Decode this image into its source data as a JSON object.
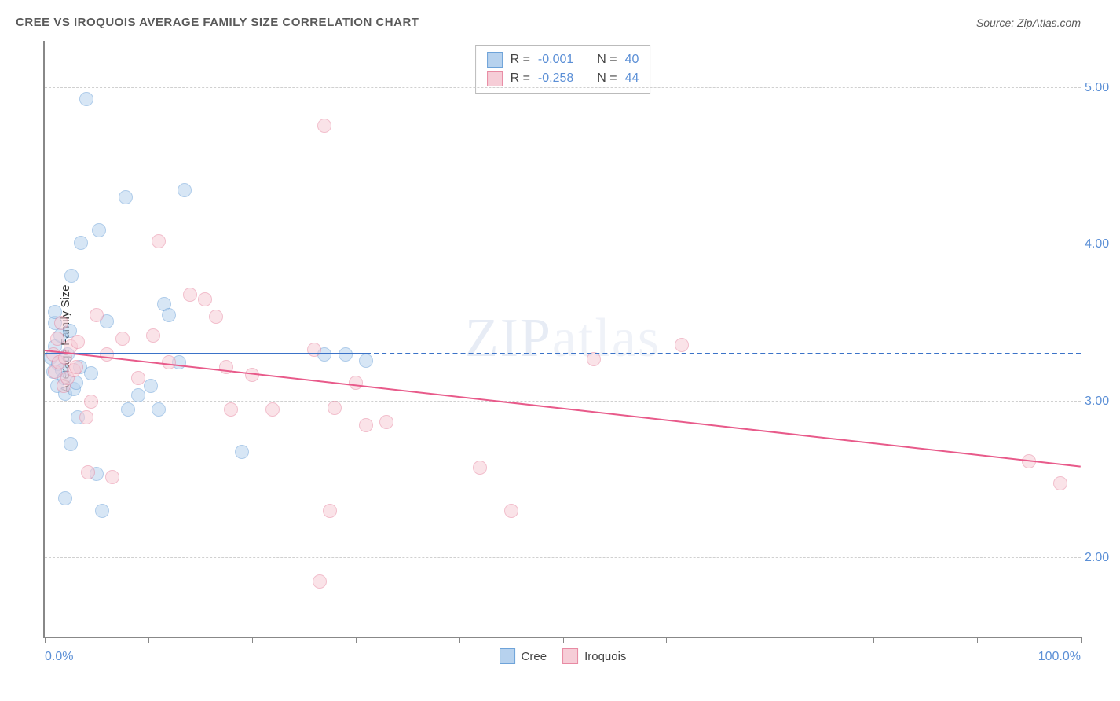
{
  "header": {
    "title": "CREE VS IROQUOIS AVERAGE FAMILY SIZE CORRELATION CHART",
    "source_label": "Source: ",
    "source_value": "ZipAtlas.com"
  },
  "watermark": {
    "prefix": "ZIP",
    "suffix": "atlas"
  },
  "chart": {
    "type": "scatter",
    "background_color": "#ffffff",
    "grid_color": "#d0d0d0",
    "axis_color": "#888888",
    "tick_label_color": "#5b8fd6",
    "yaxis_title": "Average Family Size",
    "xaxis": {
      "min_label": "0.0%",
      "max_label": "100.0%",
      "xlim": [
        0,
        100
      ],
      "tick_positions": [
        0,
        10,
        20,
        30,
        40,
        50,
        60,
        70,
        80,
        90,
        100
      ]
    },
    "yaxis": {
      "ylim": [
        1.5,
        5.3
      ],
      "ticks": [
        2.0,
        3.0,
        4.0,
        5.0
      ],
      "tick_labels": [
        "2.00",
        "3.00",
        "4.00",
        "5.00"
      ]
    },
    "series": [
      {
        "name": "Cree",
        "fill_color": "#b7d2ee",
        "stroke_color": "#6ea3d9",
        "fill_opacity": 0.55,
        "marker_radius": 9,
        "points": [
          [
            0.6,
            3.28
          ],
          [
            0.8,
            3.19
          ],
          [
            1.0,
            3.5
          ],
          [
            1.0,
            3.35
          ],
          [
            1.0,
            3.57
          ],
          [
            1.2,
            3.1
          ],
          [
            1.3,
            3.24
          ],
          [
            1.5,
            3.42
          ],
          [
            1.7,
            3.2
          ],
          [
            1.9,
            3.15
          ],
          [
            2.0,
            3.05
          ],
          [
            2.2,
            3.3
          ],
          [
            2.4,
            3.45
          ],
          [
            2.6,
            3.8
          ],
          [
            2.8,
            3.08
          ],
          [
            2.0,
            2.38
          ],
          [
            3.0,
            3.12
          ],
          [
            3.2,
            2.9
          ],
          [
            3.4,
            3.22
          ],
          [
            2.5,
            2.73
          ],
          [
            4.0,
            4.93
          ],
          [
            4.5,
            3.18
          ],
          [
            5.0,
            2.54
          ],
          [
            5.2,
            4.09
          ],
          [
            3.5,
            4.01
          ],
          [
            5.5,
            2.3
          ],
          [
            6.0,
            3.51
          ],
          [
            7.8,
            4.3
          ],
          [
            8.0,
            2.95
          ],
          [
            9.0,
            3.04
          ],
          [
            10.2,
            3.1
          ],
          [
            11.5,
            3.62
          ],
          [
            11.0,
            2.95
          ],
          [
            12.0,
            3.55
          ],
          [
            13.0,
            3.25
          ],
          [
            13.5,
            4.35
          ],
          [
            19.0,
            2.68
          ],
          [
            27.0,
            3.3
          ],
          [
            29.0,
            3.3
          ],
          [
            31.0,
            3.26
          ]
        ],
        "trend": {
          "color": "#3b73c8",
          "y_start": 3.3,
          "y_end": 3.3,
          "solid_to_x": 31,
          "dashed": true
        }
      },
      {
        "name": "Iroquois",
        "fill_color": "#f6cdd7",
        "stroke_color": "#e88aa3",
        "fill_opacity": 0.55,
        "marker_radius": 9,
        "points": [
          [
            0.8,
            3.3
          ],
          [
            1.0,
            3.19
          ],
          [
            1.2,
            3.4
          ],
          [
            1.4,
            3.25
          ],
          [
            1.6,
            3.5
          ],
          [
            1.8,
            3.1
          ],
          [
            2.0,
            3.28
          ],
          [
            2.2,
            3.15
          ],
          [
            2.5,
            3.35
          ],
          [
            2.8,
            3.2
          ],
          [
            3.0,
            3.22
          ],
          [
            3.2,
            3.38
          ],
          [
            4.0,
            2.9
          ],
          [
            4.5,
            3.0
          ],
          [
            5.0,
            3.55
          ],
          [
            6.0,
            3.3
          ],
          [
            6.5,
            2.52
          ],
          [
            4.2,
            2.55
          ],
          [
            7.5,
            3.4
          ],
          [
            9.0,
            3.15
          ],
          [
            10.5,
            3.42
          ],
          [
            11.0,
            4.02
          ],
          [
            12.0,
            3.25
          ],
          [
            14.0,
            3.68
          ],
          [
            15.5,
            3.65
          ],
          [
            16.5,
            3.54
          ],
          [
            17.5,
            3.22
          ],
          [
            18.0,
            2.95
          ],
          [
            20.0,
            3.17
          ],
          [
            22.0,
            2.95
          ],
          [
            26.0,
            3.33
          ],
          [
            27.0,
            4.76
          ],
          [
            27.5,
            2.3
          ],
          [
            26.5,
            1.85
          ],
          [
            28.0,
            2.96
          ],
          [
            30.0,
            3.12
          ],
          [
            31.0,
            2.85
          ],
          [
            33.0,
            2.87
          ],
          [
            42.0,
            2.58
          ],
          [
            45.0,
            2.3
          ],
          [
            53.0,
            3.27
          ],
          [
            61.5,
            3.36
          ],
          [
            95.0,
            2.62
          ],
          [
            98.0,
            2.48
          ]
        ],
        "trend": {
          "color": "#e85a8a",
          "y_start": 3.32,
          "y_end": 2.58,
          "solid_to_x": 100,
          "dashed": false
        }
      }
    ],
    "top_legend": {
      "rows": [
        {
          "swatch_fill": "#b7d2ee",
          "swatch_stroke": "#6ea3d9",
          "r_label": "R =",
          "r_value": "-0.001",
          "n_label": "N =",
          "n_value": "40"
        },
        {
          "swatch_fill": "#f6cdd7",
          "swatch_stroke": "#e88aa3",
          "r_label": "R =",
          "r_value": "-0.258",
          "n_label": "N =",
          "n_value": "44"
        }
      ]
    },
    "bottom_legend": [
      {
        "swatch_fill": "#b7d2ee",
        "swatch_stroke": "#6ea3d9",
        "label": "Cree"
      },
      {
        "swatch_fill": "#f6cdd7",
        "swatch_stroke": "#e88aa3",
        "label": "Iroquois"
      }
    ]
  }
}
